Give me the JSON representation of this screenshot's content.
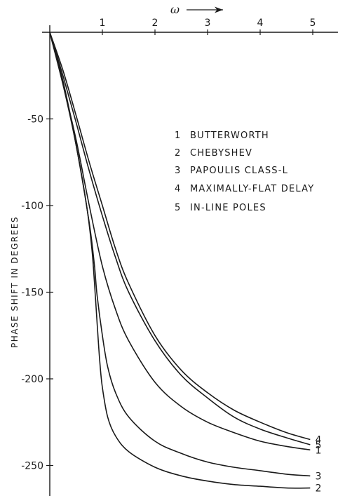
{
  "chart_data": {
    "type": "line",
    "title": "",
    "xlabel": "ω",
    "ylabel": "PHASE SHIFT IN DEGREES",
    "xlim": [
      0,
      5.1
    ],
    "ylim": [
      -265,
      0
    ],
    "x_ticks": [
      "1",
      "2",
      "3",
      "4",
      "5"
    ],
    "y_ticks": [
      "-50",
      "-100",
      "-150",
      "-200",
      "-250"
    ],
    "legend": [
      {
        "num": "1",
        "label": "BUTTERWORTH"
      },
      {
        "num": "2",
        "label": "CHEBYSHEV"
      },
      {
        "num": "3",
        "label": "PAPOULIS CLASS-L"
      },
      {
        "num": "4",
        "label": "MAXIMALLY-FLAT DELAY"
      },
      {
        "num": "5",
        "label": "IN-LINE POLES"
      }
    ],
    "legend_position": "center-right",
    "grid": false,
    "series": [
      {
        "name": "BUTTERWORTH",
        "label": "1",
        "x": [
          0,
          0.25,
          0.5,
          0.75,
          1.0,
          1.25,
          1.5,
          2.0,
          2.5,
          3.0,
          3.5,
          4.0,
          4.5,
          4.95
        ],
        "y": [
          0,
          -30,
          -62,
          -100,
          -135,
          -160,
          -178,
          -202,
          -216,
          -225,
          -231,
          -236,
          -239,
          -241
        ]
      },
      {
        "name": "CHEBYSHEV",
        "label": "2",
        "x": [
          0,
          0.25,
          0.5,
          0.7,
          0.8,
          0.85,
          0.9,
          0.95,
          1.0,
          1.1,
          1.25,
          1.5,
          2.0,
          2.5,
          3.0,
          3.5,
          4.0,
          4.5,
          4.95
        ],
        "y": [
          0,
          -30,
          -65,
          -100,
          -125,
          -145,
          -168,
          -190,
          -205,
          -222,
          -233,
          -242,
          -251,
          -256,
          -259,
          -261,
          -262,
          -263,
          -263
        ]
      },
      {
        "name": "PAPOULIS CLASS-L",
        "label": "3",
        "x": [
          0,
          0.25,
          0.5,
          0.75,
          0.85,
          0.9,
          1.0,
          1.1,
          1.25,
          1.5,
          2.0,
          2.5,
          3.0,
          3.5,
          4.0,
          4.5,
          4.95
        ],
        "y": [
          0,
          -28,
          -65,
          -110,
          -135,
          -152,
          -175,
          -193,
          -208,
          -222,
          -236,
          -243,
          -248,
          -251,
          -253,
          -255,
          -256
        ]
      },
      {
        "name": "MAXIMALLY-FLAT DELAY",
        "label": "4",
        "x": [
          0,
          0.25,
          0.5,
          0.75,
          1.0,
          1.25,
          1.5,
          2.0,
          2.5,
          3.0,
          3.5,
          4.0,
          4.5,
          4.95
        ],
        "y": [
          0,
          -22,
          -48,
          -75,
          -100,
          -125,
          -145,
          -175,
          -195,
          -208,
          -218,
          -225,
          -231,
          -235
        ]
      },
      {
        "name": "IN-LINE POLES",
        "label": "5",
        "x": [
          0,
          0.25,
          0.5,
          0.75,
          1.0,
          1.25,
          1.5,
          2.0,
          2.5,
          3.0,
          3.5,
          4.0,
          4.5,
          4.95
        ],
        "y": [
          0,
          -25,
          -52,
          -80,
          -106,
          -130,
          -150,
          -178,
          -198,
          -211,
          -222,
          -229,
          -234,
          -238
        ]
      }
    ]
  }
}
